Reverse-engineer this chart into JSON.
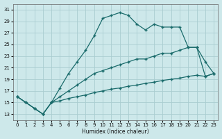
{
  "xlabel": "Humidex (Indice chaleur)",
  "bg_color": "#cde8ea",
  "grid_color": "#b0d4d8",
  "line_color": "#1a6b6b",
  "xlim": [
    -0.5,
    23.5
  ],
  "ylim": [
    12,
    32
  ],
  "xticks": [
    0,
    1,
    2,
    3,
    4,
    5,
    6,
    7,
    8,
    9,
    10,
    11,
    12,
    13,
    14,
    15,
    16,
    17,
    18,
    19,
    20,
    21,
    22,
    23
  ],
  "yticks": [
    13,
    15,
    17,
    19,
    21,
    23,
    25,
    27,
    29,
    31
  ],
  "peak_x": [
    0,
    1,
    2,
    3,
    4,
    5,
    6,
    7,
    8,
    9,
    10,
    11,
    12,
    13,
    14,
    15,
    16,
    17,
    18,
    19,
    20,
    21,
    22,
    23
  ],
  "peak_y": [
    16,
    15,
    14,
    13,
    15,
    17.5,
    20,
    22,
    24,
    26.5,
    29.5,
    30,
    30.5,
    30,
    28.5,
    27.5,
    28.5,
    28,
    28,
    28,
    24.5,
    24.5,
    22,
    20
  ],
  "mid_x": [
    0,
    1,
    2,
    3,
    4,
    5,
    6,
    7,
    8,
    9,
    10,
    11,
    12,
    13,
    14,
    15,
    16,
    17,
    18,
    19,
    20,
    21,
    22,
    23
  ],
  "mid_y": [
    16,
    15,
    14,
    13,
    15,
    16,
    17,
    18,
    19,
    20,
    20.5,
    21,
    21.5,
    22,
    22.5,
    22.5,
    23,
    23.5,
    23.5,
    24,
    24.5,
    24.5,
    19.5,
    20
  ],
  "low_x": [
    0,
    1,
    2,
    3,
    4,
    5,
    6,
    7,
    8,
    9,
    10,
    11,
    12,
    13,
    14,
    15,
    16,
    17,
    18,
    19,
    20,
    21,
    22,
    23
  ],
  "low_y": [
    16,
    15,
    14,
    13,
    15,
    15.3,
    15.7,
    16,
    16.3,
    16.7,
    17,
    17.3,
    17.5,
    17.8,
    18,
    18.3,
    18.5,
    18.8,
    19,
    19.2,
    19.5,
    19.7,
    19.5,
    20
  ]
}
